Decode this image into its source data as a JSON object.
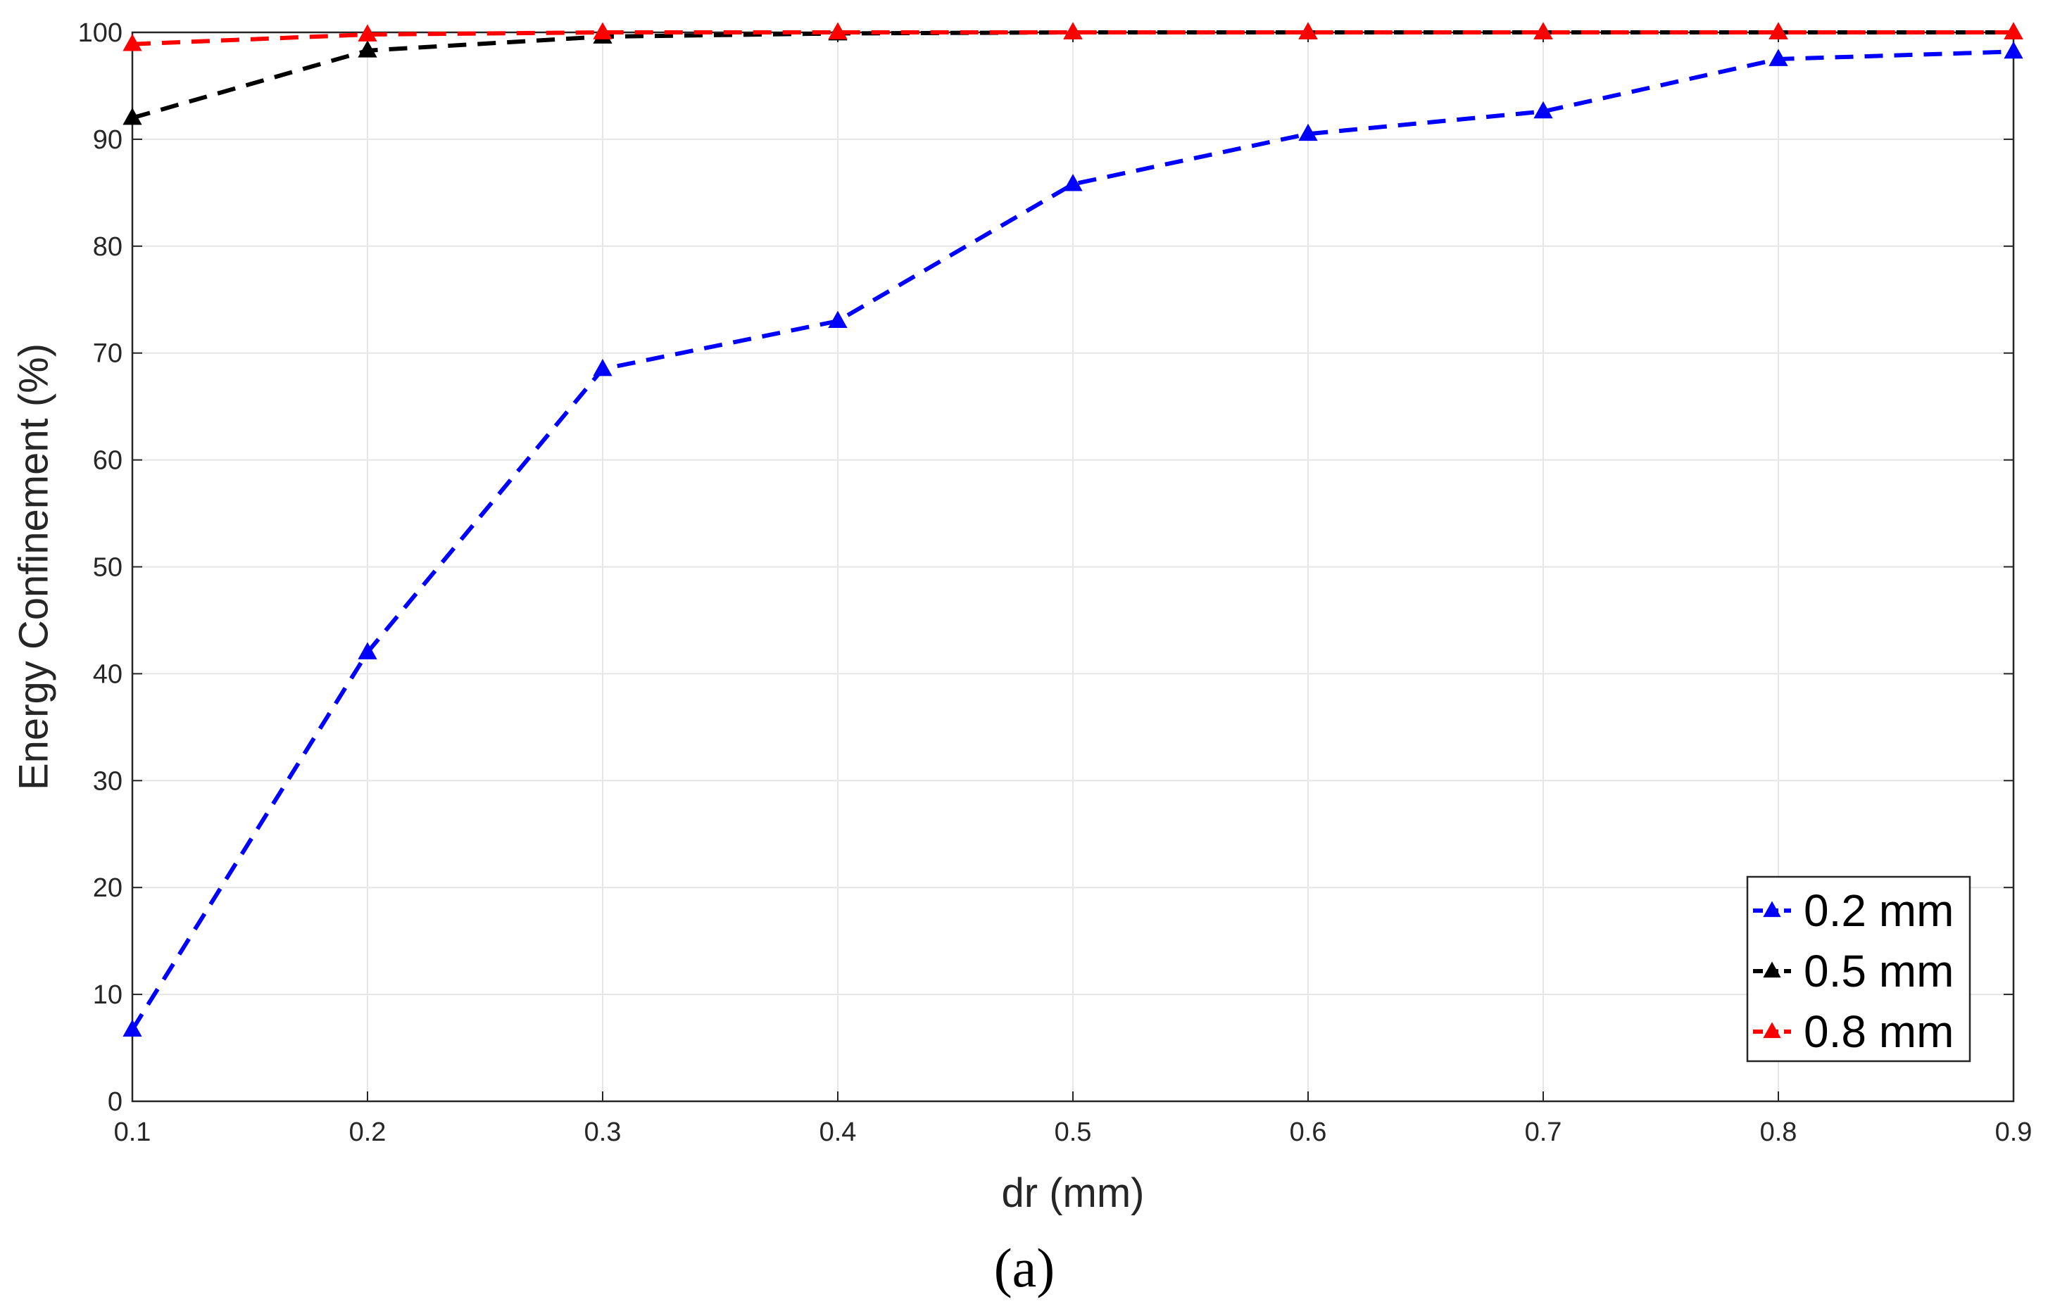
{
  "chart_data": {
    "type": "line",
    "xlabel": "dr (mm)",
    "ylabel": "Energy Confinement (%)",
    "caption": "(a)",
    "x": [
      0.1,
      0.2,
      0.3,
      0.4,
      0.5,
      0.6,
      0.7,
      0.8,
      0.9
    ],
    "xlim": [
      0.1,
      0.9
    ],
    "ylim": [
      0,
      100
    ],
    "xticks": [
      "0.1",
      "0.2",
      "0.3",
      "0.4",
      "0.5",
      "0.6",
      "0.7",
      "0.8",
      "0.9"
    ],
    "yticks": [
      "0",
      "10",
      "20",
      "30",
      "40",
      "50",
      "60",
      "70",
      "80",
      "90",
      "100"
    ],
    "grid": true,
    "legend_position": "bottom-right",
    "series": [
      {
        "name": "0.2 mm",
        "color": "#0000ff",
        "marker": "triangle",
        "line_style": "dashed",
        "values": [
          6.7,
          42.0,
          68.5,
          73.0,
          85.8,
          90.5,
          92.6,
          97.5,
          98.2
        ]
      },
      {
        "name": "0.5 mm",
        "color": "#000000",
        "marker": "triangle",
        "line_style": "dashed",
        "values": [
          92.0,
          98.3,
          99.6,
          99.9,
          100.0,
          100.0,
          100.0,
          100.0,
          100.0
        ]
      },
      {
        "name": "0.8 mm",
        "color": "#ff0000",
        "marker": "triangle",
        "line_style": "dashed",
        "values": [
          98.9,
          99.8,
          100.0,
          100.0,
          100.0,
          100.0,
          100.0,
          100.0,
          100.0
        ]
      }
    ]
  }
}
